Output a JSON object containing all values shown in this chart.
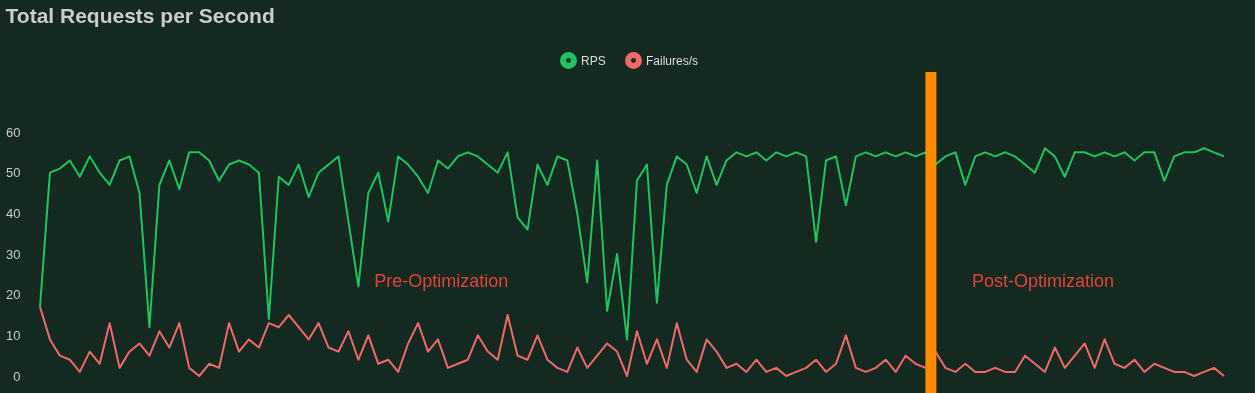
{
  "chart_data": {
    "type": "line",
    "title": "Total Requests per Second",
    "categories": [
      null,
      null,
      null,
      null,
      null,
      null,
      null,
      null,
      null,
      null,
      null,
      null,
      null,
      null,
      null,
      null,
      null,
      null,
      null,
      null,
      null,
      null,
      null,
      null,
      null,
      null,
      null,
      null,
      null,
      null,
      null,
      null,
      null,
      null,
      null,
      null,
      null,
      null,
      null,
      null,
      null,
      null,
      null,
      null,
      null,
      null,
      null,
      null,
      null,
      null,
      null,
      null,
      null,
      null,
      null,
      null,
      null,
      null,
      null,
      null,
      null,
      null,
      null,
      null,
      null,
      null,
      null,
      null,
      null,
      null,
      null,
      null,
      null,
      null,
      null,
      null,
      null,
      null,
      null,
      null,
      null,
      null,
      null,
      null,
      null,
      null,
      null,
      null,
      null,
      null,
      null,
      null,
      null,
      null,
      null,
      null,
      null,
      null,
      null,
      null,
      null,
      null,
      null,
      null,
      null,
      null,
      null,
      null,
      null,
      null,
      null,
      null,
      null,
      null,
      null,
      null,
      null,
      null,
      null,
      null
    ],
    "series": [
      {
        "name": "RPS",
        "color": "#1fc45f",
        "values": [
          17,
          50,
          51,
          53,
          49,
          54,
          50,
          47,
          53,
          54,
          45,
          12,
          47,
          53,
          46,
          55,
          55,
          53,
          48,
          52,
          53,
          52,
          50,
          14,
          49,
          47,
          52,
          44,
          50,
          52,
          54,
          38,
          22,
          45,
          50,
          38,
          54,
          52,
          49,
          45,
          53,
          51,
          54,
          55,
          54,
          52,
          50,
          55,
          39,
          36,
          52,
          47,
          54,
          53,
          40,
          23,
          53,
          16,
          30,
          9,
          48,
          52,
          18,
          47,
          54,
          52,
          45,
          54,
          47,
          53,
          55,
          54,
          55,
          53,
          55,
          54,
          55,
          54,
          33,
          53,
          54,
          42,
          54,
          55,
          54,
          55,
          54,
          55,
          54,
          55,
          52,
          54,
          55,
          47,
          54,
          55,
          54,
          55,
          54,
          52,
          50,
          56,
          54,
          49,
          55,
          55,
          54,
          55,
          54,
          55,
          53,
          55,
          55,
          48,
          54,
          55,
          55,
          56,
          55,
          54
        ]
      },
      {
        "name": "Failures/s",
        "color": "#f06a6a",
        "values": [
          17,
          9,
          5,
          4,
          1,
          6,
          3,
          13,
          2,
          6,
          8,
          5,
          11,
          7,
          13,
          2,
          0,
          3,
          2,
          13,
          6,
          9,
          7,
          13,
          12,
          15,
          12,
          9,
          13,
          7,
          6,
          11,
          4,
          10,
          3,
          4,
          1,
          8,
          13,
          6,
          9,
          2,
          3,
          4,
          10,
          6,
          4,
          15,
          5,
          4,
          10,
          4,
          2,
          1,
          7,
          2,
          5,
          8,
          6,
          0,
          11,
          3,
          9,
          2,
          13,
          4,
          1,
          9,
          6,
          2,
          3,
          1,
          4,
          1,
          2,
          0,
          1,
          2,
          4,
          1,
          3,
          10,
          2,
          1,
          2,
          4,
          1,
          5,
          3,
          2,
          6,
          2,
          1,
          3,
          1,
          1,
          2,
          1,
          1,
          5,
          3,
          1,
          7,
          2,
          5,
          8,
          2,
          9,
          3,
          2,
          4,
          1,
          3,
          2,
          1,
          1,
          0,
          1,
          2,
          0
        ]
      }
    ],
    "ylim": [
      0,
      60
    ],
    "yticks": [
      0,
      10,
      20,
      30,
      40,
      50,
      60
    ],
    "annotations": [
      "Pre-Optimization",
      "Post-Optimization"
    ],
    "legend": "top",
    "grid": false,
    "marker": "none",
    "line_style": "solid",
    "tick_labels": "y"
  }
}
